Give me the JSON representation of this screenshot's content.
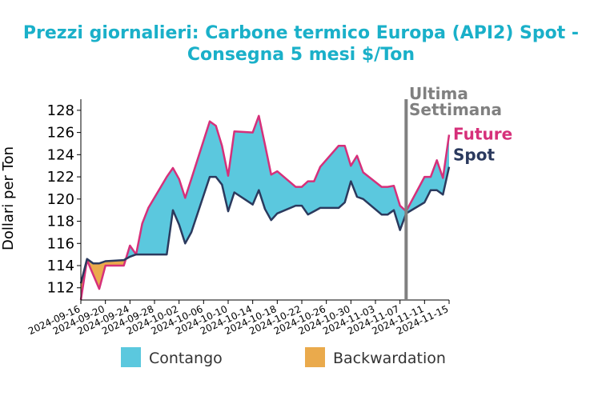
{
  "chart_data": {
    "type": "area",
    "title_line1": "Prezzi giornalieri: Carbone termico Europa (API2) Spot -",
    "title_line2": "Consegna 5 mesi $/Ton",
    "ylabel": "Dollari per Ton",
    "ylim": [
      110.9,
      129
    ],
    "yticks": [
      "112",
      "114",
      "116",
      "118",
      "120",
      "122",
      "124",
      "126",
      "128"
    ],
    "xlim": [
      "2024-09-16",
      "2024-11-15"
    ],
    "xticks": [
      "2024-09-16",
      "2024-09-20",
      "2024-09-24",
      "2024-09-28",
      "2024-10-02",
      "2024-10-06",
      "2024-10-10",
      "2024-10-14",
      "2024-10-18",
      "2024-10-22",
      "2024-10-26",
      "2024-10-30",
      "2024-11-03",
      "2024-11-07",
      "2024-11-11",
      "2024-11-15"
    ],
    "dates": [
      "2024-09-16",
      "2024-09-17",
      "2024-09-18",
      "2024-09-19",
      "2024-09-20",
      "2024-09-23",
      "2024-09-24",
      "2024-09-25",
      "2024-09-26",
      "2024-09-27",
      "2024-09-30",
      "2024-10-01",
      "2024-10-02",
      "2024-10-03",
      "2024-10-04",
      "2024-10-07",
      "2024-10-08",
      "2024-10-09",
      "2024-10-10",
      "2024-10-11",
      "2024-10-14",
      "2024-10-15",
      "2024-10-16",
      "2024-10-17",
      "2024-10-18",
      "2024-10-21",
      "2024-10-22",
      "2024-10-23",
      "2024-10-24",
      "2024-10-25",
      "2024-10-28",
      "2024-10-29",
      "2024-10-30",
      "2024-10-31",
      "2024-11-01",
      "2024-11-04",
      "2024-11-05",
      "2024-11-06",
      "2024-11-07",
      "2024-11-08",
      "2024-11-11",
      "2024-11-12",
      "2024-11-13",
      "2024-11-14",
      "2024-11-15"
    ],
    "series": [
      {
        "name": "Future",
        "color": "#d6307a",
        "values": [
          110.9,
          114.5,
          113.2,
          111.9,
          114.0,
          114.0,
          115.8,
          115.0,
          117.8,
          119.2,
          122.0,
          122.8,
          121.8,
          120.1,
          121.8,
          127.0,
          126.6,
          124.8,
          122.1,
          126.1,
          126.0,
          127.5,
          124.9,
          122.2,
          122.5,
          121.1,
          121.1,
          121.6,
          121.6,
          122.9,
          124.8,
          124.8,
          123.0,
          123.9,
          122.4,
          121.1,
          121.1,
          121.2,
          119.4,
          118.9,
          122.0,
          122.0,
          123.5,
          121.9,
          125.8
        ]
      },
      {
        "name": "Spot",
        "color": "#2b3a5e",
        "values": [
          112.4,
          114.6,
          114.2,
          114.2,
          114.4,
          114.5,
          114.8,
          115.0,
          115.0,
          115.0,
          115.0,
          119.0,
          117.7,
          116.0,
          117.0,
          122.0,
          122.0,
          121.3,
          118.9,
          120.6,
          119.5,
          120.8,
          119.1,
          118.1,
          118.7,
          119.4,
          119.4,
          118.6,
          118.9,
          119.2,
          119.2,
          119.7,
          121.6,
          120.2,
          120.0,
          118.6,
          118.6,
          119.0,
          117.2,
          118.7,
          119.7,
          120.8,
          120.8,
          120.4,
          122.9
        ]
      }
    ],
    "marker_date": "2024-11-08",
    "marker_label_line1": "Ultima",
    "marker_label_line2": "Settimana",
    "legend": [
      {
        "label": "Contango",
        "color": "#5bc8de"
      },
      {
        "label": "Backwardation",
        "color": "#eaaa4c"
      }
    ],
    "marker_color": "#808080",
    "legend_position": "bottom"
  }
}
